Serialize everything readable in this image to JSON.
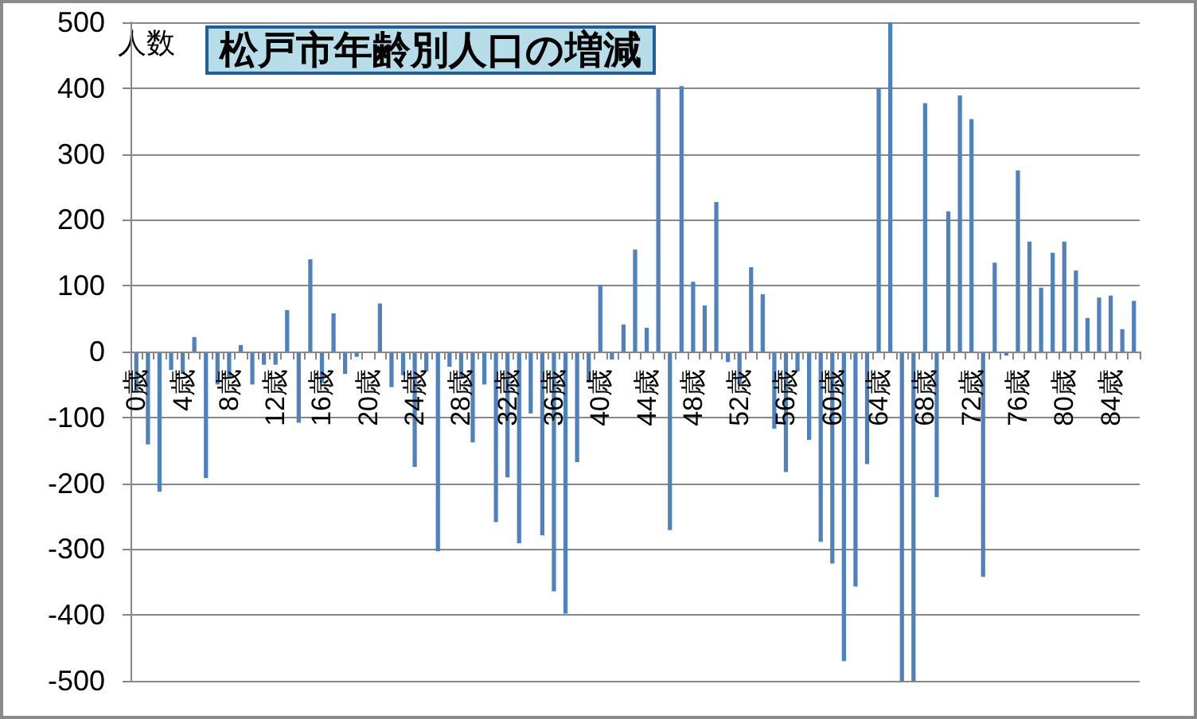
{
  "chart_data": {
    "type": "bar",
    "title": "松戸市年齢別人口の増減",
    "ylabel": "人数",
    "categories": [
      "0歳",
      null,
      null,
      null,
      "4歳",
      null,
      null,
      null,
      "8歳",
      null,
      null,
      null,
      "12歳",
      null,
      null,
      null,
      "16歳",
      null,
      null,
      null,
      "20歳",
      null,
      null,
      null,
      "24歳",
      null,
      null,
      null,
      "28歳",
      null,
      null,
      null,
      "32歳",
      null,
      null,
      null,
      "36歳",
      null,
      null,
      null,
      "40歳",
      null,
      null,
      null,
      "44歳",
      null,
      null,
      null,
      "48歳",
      null,
      null,
      null,
      "52歳",
      null,
      null,
      null,
      "56歳",
      null,
      null,
      null,
      "60歳",
      null,
      null,
      null,
      "64歳",
      null,
      null,
      null,
      "68歳",
      null,
      null,
      null,
      "72歳",
      null,
      null,
      null,
      "76歳",
      null,
      null,
      null,
      "80歳",
      null,
      null,
      null,
      "84歳",
      null,
      null
    ],
    "values": [
      -60,
      -141,
      -213,
      -28,
      -34,
      22,
      -192,
      -50,
      -40,
      10,
      -50,
      -20,
      -20,
      63,
      -108,
      140,
      -48,
      58,
      -34,
      -8,
      -2,
      73,
      -54,
      -36,
      -175,
      -30,
      -303,
      -23,
      -40,
      -138,
      -50,
      -259,
      -191,
      -291,
      -94,
      -279,
      -364,
      -398,
      -168,
      -47,
      101,
      -12,
      41,
      155,
      36,
      400,
      -271,
      403,
      106,
      70,
      227,
      -16,
      -50,
      128,
      87,
      -117,
      -183,
      -30,
      -134,
      -289,
      -322,
      -470,
      -357,
      -171,
      400,
      500,
      -500,
      -500,
      377,
      -221,
      213,
      389,
      353,
      -342,
      135,
      -6,
      275,
      167,
      97,
      150,
      167,
      123,
      51,
      82,
      85,
      34,
      77
    ],
    "color": "#4f81bd",
    "ylim": [
      -500,
      500
    ],
    "yticks": [
      -500,
      -400,
      -300,
      -200,
      -100,
      0,
      100,
      200,
      300,
      400,
      500
    ],
    "grid": "y"
  }
}
